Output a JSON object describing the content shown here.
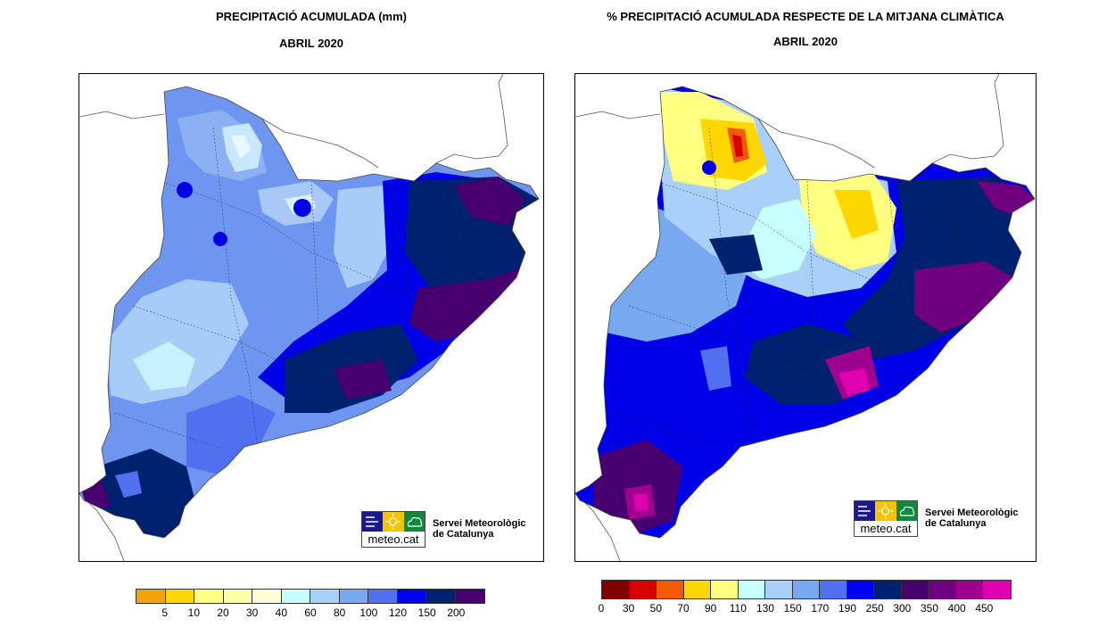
{
  "left": {
    "title_line1": "PRECIPITACIÓ ACUMULADA (mm)",
    "title_line2": "ABRIL 2020",
    "legend": {
      "colors": [
        "#f0a30a",
        "#ffd700",
        "#ffff80",
        "#ffffa8",
        "#ffffd8",
        "#c8ffff",
        "#a8d0f8",
        "#78a8f0",
        "#5070f0",
        "#0000f0",
        "#002070",
        "#480070"
      ],
      "labels": [
        "5",
        "10",
        "20",
        "30",
        "40",
        "60",
        "80",
        "100",
        "120",
        "150",
        "200"
      ]
    }
  },
  "right": {
    "title_line1": "% PRECIPITACIÓ ACUMULADA RESPECTE DE LA MITJANA CLIMÀTICA",
    "title_line2": "ABRIL 2020",
    "legend": {
      "colors": [
        "#800000",
        "#d80000",
        "#f05a00",
        "#ffd700",
        "#ffff80",
        "#c8ffff",
        "#a8d0f8",
        "#78a8f0",
        "#5070f0",
        "#0000f0",
        "#002070",
        "#480070",
        "#700080",
        "#a00090",
        "#e000b0"
      ],
      "labels": [
        "0",
        "30",
        "50",
        "70",
        "90",
        "110",
        "130",
        "150",
        "170",
        "190",
        "250",
        "300",
        "350",
        "400",
        "450"
      ]
    }
  },
  "logo": {
    "word": "meteo.cat",
    "line1": "Servei Meteorològic",
    "line2": "de Catalunya",
    "colors": {
      "blue": "#1a1a8c",
      "yellow": "#f5c400",
      "green": "#0f8a3c"
    }
  }
}
